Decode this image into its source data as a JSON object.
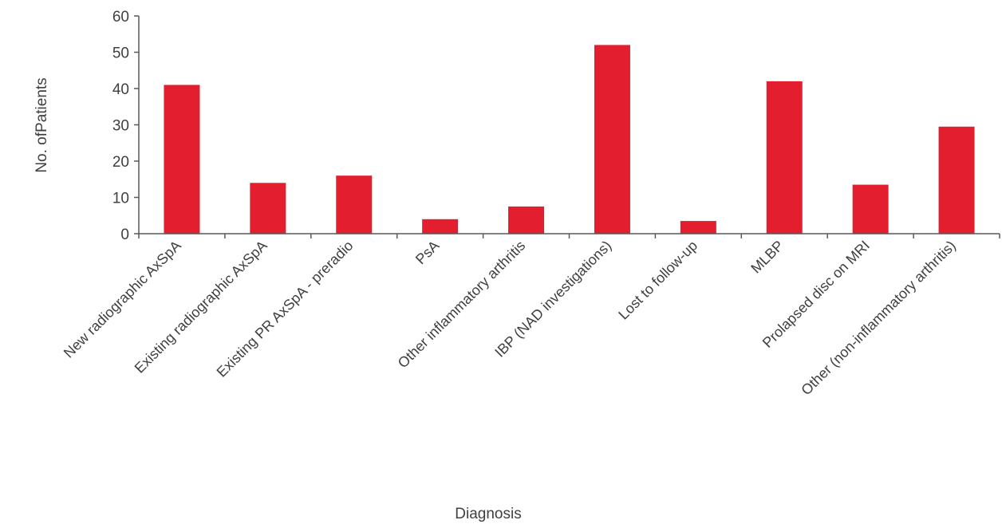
{
  "chart_data": {
    "type": "bar",
    "title": "",
    "xlabel": "Diagnosis",
    "ylabel": "No. ofPatients",
    "ylim": [
      0,
      60
    ],
    "yticks": [
      0,
      10,
      20,
      30,
      40,
      50,
      60
    ],
    "grid": false,
    "legend": "none",
    "bar_color": "#e31e2f",
    "categories": [
      "New radiographic AxSpA",
      "Existing radiographic AxSpA",
      "Existing PR AxSpA - preradio",
      "PsA",
      "Other inflammatory arthritis",
      "IBP (NAD investigations)",
      "Lost to follow-up",
      "MLBP",
      "Prolapsed disc on MRI",
      "Other (non-inflammatory arthritis)"
    ],
    "values": [
      41,
      14,
      16,
      4,
      7.5,
      52,
      3.5,
      42,
      13.5,
      29.5
    ]
  }
}
